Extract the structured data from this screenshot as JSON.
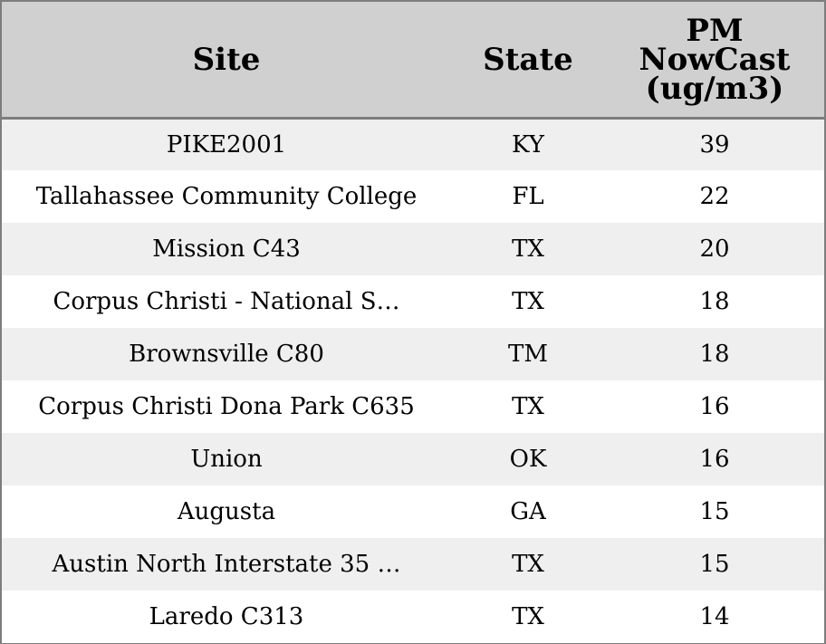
{
  "table": {
    "headers": {
      "site": "Site",
      "state": "State",
      "pm": "PM\nNowCast\n(ug/m3)"
    },
    "rows": [
      {
        "site": "PIKE2001",
        "state": "KY",
        "pm": "39"
      },
      {
        "site": "Tallahassee Community College",
        "state": "FL",
        "pm": "22"
      },
      {
        "site": "Mission C43",
        "state": "TX",
        "pm": "20"
      },
      {
        "site": "Corpus Christi - National S…",
        "state": "TX",
        "pm": "18"
      },
      {
        "site": "Brownsville C80",
        "state": "TM",
        "pm": "18"
      },
      {
        "site": "Corpus Christi Dona Park C635",
        "state": "TX",
        "pm": "16"
      },
      {
        "site": "Union",
        "state": "OK",
        "pm": "16"
      },
      {
        "site": "Augusta",
        "state": "GA",
        "pm": "15"
      },
      {
        "site": "Austin North Interstate 35 …",
        "state": "TX",
        "pm": "15"
      },
      {
        "site": "Laredo C313",
        "state": "TX",
        "pm": "14"
      }
    ]
  },
  "colors": {
    "header_bg": "#d0d0d0",
    "row_alt_bg": "#efefef",
    "border": "#7d7d7d"
  }
}
